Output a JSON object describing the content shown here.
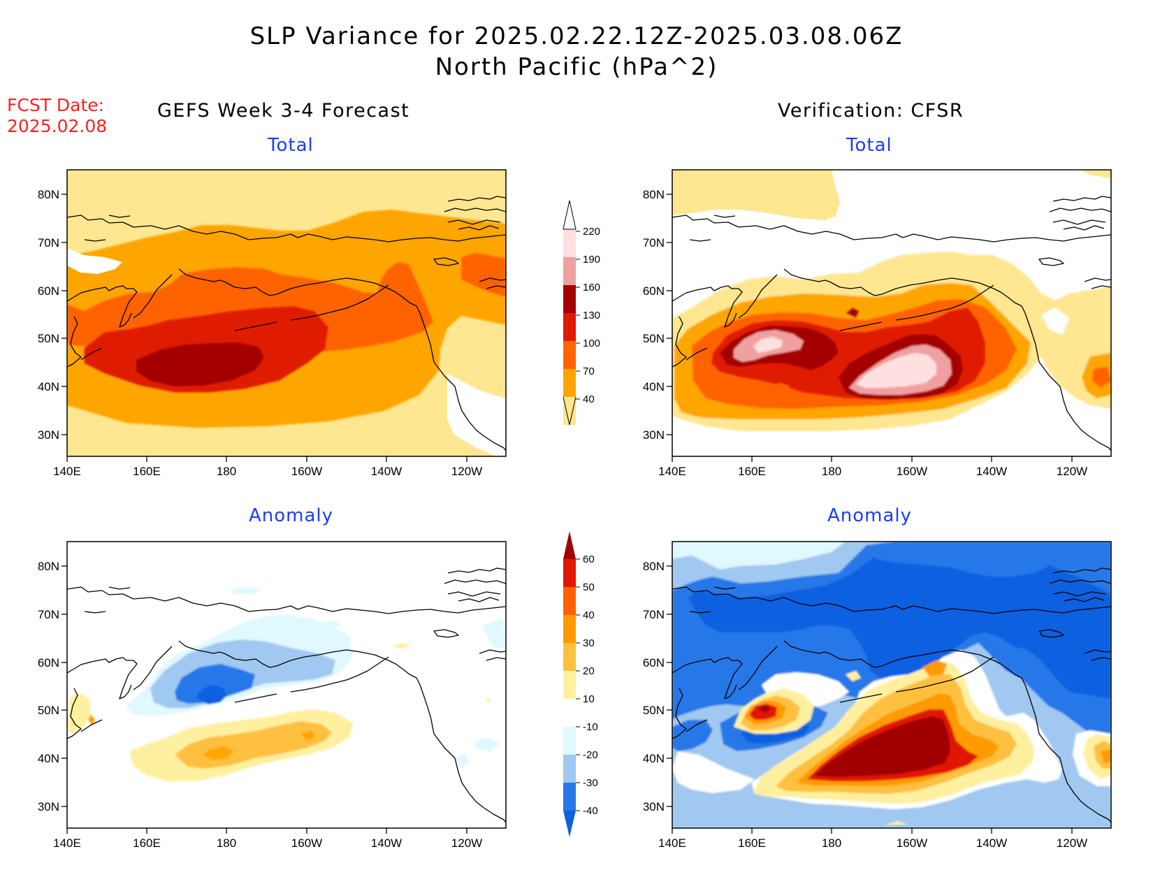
{
  "title": {
    "line1": "SLP Variance for 2025.02.22.12Z-2025.03.08.06Z",
    "line2": "North Pacific (hPa^2)"
  },
  "fcst_date": {
    "label": "FCST Date:",
    "value": "2025.02.08"
  },
  "columns": {
    "left": "GEFS Week 3-4 Forecast",
    "right": "Verification: CFSR"
  },
  "panels": {
    "top_left": "Total",
    "top_right": "Total",
    "bottom_left": "Anomaly",
    "bottom_right": "Anomaly"
  },
  "axes": {
    "lon_labels": [
      "140E",
      "160E",
      "180",
      "160W",
      "140W",
      "120W"
    ],
    "lat_labels": [
      "80N",
      "70N",
      "60N",
      "50N",
      "40N",
      "30N"
    ]
  },
  "colorbars": {
    "total": {
      "levels": [
        "40",
        "70",
        "100",
        "130",
        "160",
        "190",
        "220"
      ],
      "colors": [
        "#ffe690",
        "#ffa500",
        "#ff6400",
        "#e01a00",
        "#a50000",
        "#f0a0a0",
        "#ffe0e0"
      ]
    },
    "anomaly": {
      "levels": [
        "-40",
        "-30",
        "-20",
        "-10",
        "10",
        "20",
        "30",
        "40",
        "50",
        "60"
      ],
      "colors": [
        "#1060e0",
        "#2878e8",
        "#a0c8f0",
        "#e0f8ff",
        "#ffffff",
        "#fff0a0",
        "#ffc040",
        "#ff9a00",
        "#ff6000",
        "#e01800",
        "#a00000"
      ]
    }
  }
}
